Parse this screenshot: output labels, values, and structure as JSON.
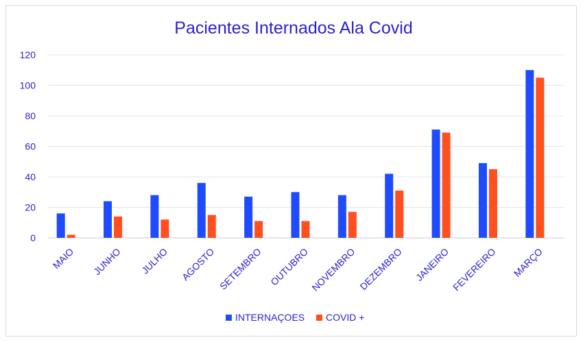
{
  "colors": {
    "text": "#2a1fd0",
    "grid": "#e3e3ee",
    "axis": "#c8c8d8"
  },
  "chart_data": {
    "type": "bar",
    "title": "Pacientes Internados Ala Covid",
    "xlabel": "",
    "ylabel": "",
    "ylim": [
      0,
      120
    ],
    "yticks": [
      "0",
      "20",
      "40",
      "60",
      "80",
      "100",
      "120"
    ],
    "grid": true,
    "legend_position": "bottom",
    "categories": [
      "MAIO",
      "JUNHO",
      "JULHO",
      "AGOSTO",
      "SETEMBRO",
      "OUTUBRO",
      "NOVEMBRO",
      "DEZEMBRO",
      "JANEIRO",
      "FEVEREIRO",
      "MARÇO"
    ],
    "series": [
      {
        "name": "INTERNAÇOES",
        "color": "#1f4bff",
        "values": [
          16,
          24,
          28,
          36,
          27,
          30,
          28,
          42,
          71,
          49,
          110
        ]
      },
      {
        "name": "COVID +",
        "color": "#ff4f1f",
        "values": [
          2,
          14,
          12,
          15,
          11,
          11,
          17,
          31,
          69,
          45,
          105
        ]
      }
    ]
  }
}
